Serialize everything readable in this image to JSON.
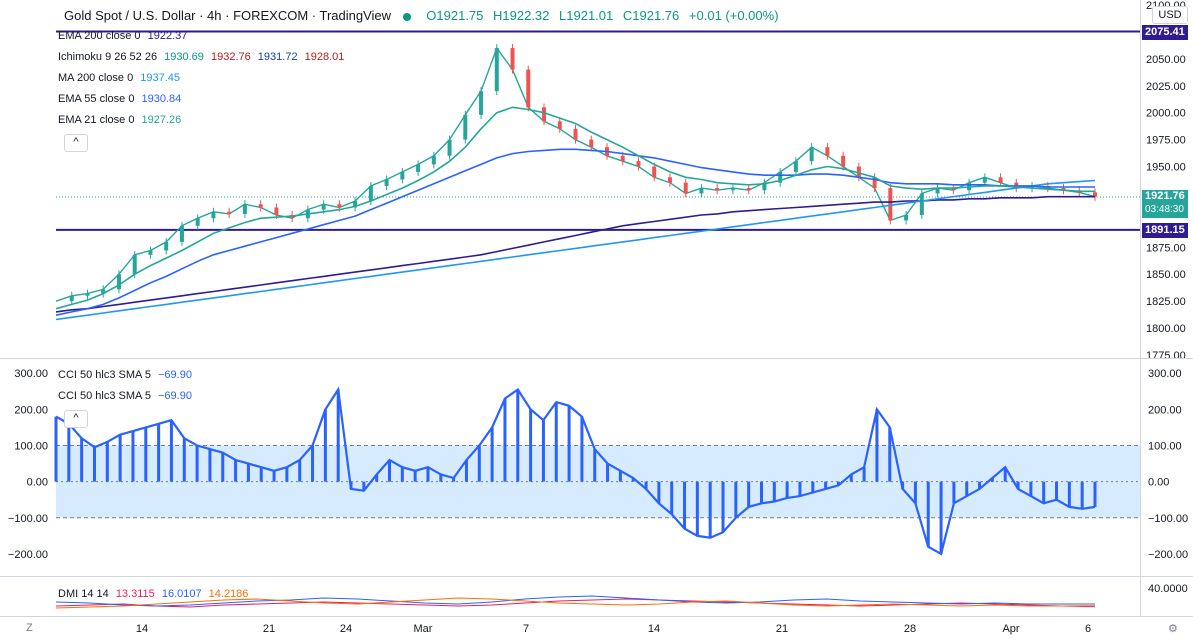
{
  "header": {
    "symbol": "Gold Spot / U.S. Dollar · 4h · FOREXCOM · TradingView",
    "open": "O1921.75",
    "high": "H1922.32",
    "low": "L1921.01",
    "close": "C1921.76",
    "change": "+0.01 (+0.00%)"
  },
  "legend": {
    "ema200": {
      "label": "EMA 200 close 0",
      "value": "1922.37",
      "color": "#311b92"
    },
    "ichimoku": {
      "label": "Ichimoku 9 26 52 26",
      "v1": "1930.69",
      "v2": "1932.76",
      "v3": "1931.72",
      "v4": "1928.01",
      "c1": "#089981",
      "c2": "#b71c1c",
      "c3": "#0d47a1",
      "c4": "#b71c1c"
    },
    "ma200": {
      "label": "MA 200 close 0",
      "value": "1937.45",
      "color": "#2196f3"
    },
    "ema55": {
      "label": "EMA 55 close 0",
      "value": "1930.84",
      "color": "#2962ff"
    },
    "ema21": {
      "label": "EMA 21 close 0",
      "value": "1927.26",
      "color": "#26a69a"
    },
    "collapse_icon": "chevron-up-icon",
    "collapse_glyph": "^"
  },
  "cci_legend": {
    "line1": {
      "label": "CCI 50 hlc3 SMA 5",
      "value": "−69.90"
    },
    "line2": {
      "label": "CCI 50 hlc3 SMA 5",
      "value": "−69.90"
    }
  },
  "dmi_legend": {
    "label": "DMI 14 14",
    "v1": "13.3115",
    "c1": "#e91e63",
    "v2": "16.0107",
    "c2": "#2962ff",
    "v3": "14.2186",
    "c3": "#ff6d00"
  },
  "price_axis": {
    "currency": "USD",
    "currency_glyph": "⌄",
    "ticks": [
      "2100.00",
      "2050.00",
      "2025.00",
      "2000.00",
      "1975.00",
      "1950.00",
      "1875.00",
      "1850.00",
      "1825.00",
      "1800.00",
      "1775.00"
    ],
    "tags": [
      {
        "text": "2075.41",
        "color": "#311b92"
      },
      {
        "text": "1921.76",
        "sub": "03:48:30",
        "color": "#26a69a"
      },
      {
        "text": "1891.15",
        "color": "#311b92"
      }
    ]
  },
  "cci_axis": {
    "ticks": [
      "300.00",
      "200.00",
      "100.00",
      "0.00",
      "−100.00",
      "−200.00"
    ]
  },
  "dmi_axis": {
    "ticks": [
      "40.0000"
    ]
  },
  "time_axis": {
    "ticks": [
      "14",
      "21",
      "24",
      "Mar",
      "7",
      "14",
      "21",
      "28",
      "Apr",
      "6"
    ]
  },
  "bottom": {
    "left_icon": "timezone-icon",
    "left_glyph": "Z",
    "right_icon": "settings-icon",
    "right_glyph": "⚙"
  },
  "chart_data": [
    {
      "type": "line",
      "title": "Gold Spot / U.S. Dollar · 4h · FOREXCOM",
      "y_axis": "price (USD)",
      "ylim": [
        1775,
        2100
      ],
      "horizontal_lines": [
        2075.41,
        1891.15
      ],
      "last_price": 1921.76,
      "series": [
        {
          "name": "price",
          "color": "#26a69a",
          "values": [
            1825,
            1830,
            1832,
            1836,
            1850,
            1868,
            1872,
            1880,
            1895,
            1902,
            1908,
            1906,
            1915,
            1912,
            1905,
            1902,
            1910,
            1915,
            1912,
            1918,
            1932,
            1938,
            1945,
            1952,
            1960,
            1975,
            1998,
            2020,
            2060,
            2040,
            2005,
            1992,
            1985,
            1975,
            1968,
            1960,
            1955,
            1950,
            1940,
            1935,
            1925,
            1930,
            1928,
            1930,
            1928,
            1935,
            1945,
            1955,
            1968,
            1960,
            1950,
            1940,
            1930,
            1900,
            1905,
            1925,
            1930,
            1928,
            1935,
            1940,
            1935,
            1930,
            1932,
            1930,
            1928,
            1926,
            1922
          ]
        },
        {
          "name": "EMA 200",
          "color": "#311b92",
          "values": [
            1815,
            1817,
            1818,
            1820,
            1822,
            1824,
            1826,
            1828,
            1830,
            1832,
            1834,
            1836,
            1838,
            1840,
            1842,
            1844,
            1846,
            1848,
            1850,
            1852,
            1854,
            1856,
            1858,
            1860,
            1862,
            1864,
            1866,
            1868,
            1871,
            1874,
            1877,
            1880,
            1883,
            1886,
            1889,
            1892,
            1895,
            1897,
            1899,
            1901,
            1903,
            1905,
            1906,
            1908,
            1909,
            1910,
            1911,
            1912,
            1913,
            1914,
            1915,
            1916,
            1917,
            1917,
            1918,
            1918,
            1919,
            1919,
            1920,
            1920,
            1921,
            1921,
            1921,
            1922,
            1922,
            1922,
            1922
          ]
        },
        {
          "name": "MA 200",
          "color": "#2196f3",
          "values": [
            1808,
            1810,
            1812,
            1814,
            1816,
            1818,
            1820,
            1822,
            1824,
            1826,
            1828,
            1830,
            1832,
            1834,
            1836,
            1838,
            1840,
            1842,
            1844,
            1846,
            1848,
            1850,
            1852,
            1854,
            1856,
            1858,
            1860,
            1862,
            1864,
            1866,
            1868,
            1870,
            1872,
            1874,
            1876,
            1878,
            1880,
            1882,
            1884,
            1886,
            1888,
            1890,
            1892,
            1894,
            1896,
            1898,
            1900,
            1902,
            1904,
            1906,
            1908,
            1910,
            1912,
            1914,
            1916,
            1918,
            1920,
            1922,
            1924,
            1926,
            1928,
            1930,
            1932,
            1934,
            1935,
            1936,
            1937
          ]
        },
        {
          "name": "EMA 55",
          "color": "#2962ff",
          "values": [
            1812,
            1815,
            1818,
            1822,
            1828,
            1835,
            1842,
            1848,
            1855,
            1862,
            1868,
            1872,
            1876,
            1880,
            1884,
            1888,
            1892,
            1896,
            1900,
            1904,
            1910,
            1916,
            1922,
            1928,
            1934,
            1940,
            1946,
            1952,
            1958,
            1962,
            1964,
            1965,
            1966,
            1966,
            1965,
            1964,
            1962,
            1960,
            1958,
            1955,
            1952,
            1949,
            1947,
            1945,
            1943,
            1942,
            1942,
            1942,
            1943,
            1943,
            1942,
            1940,
            1938,
            1935,
            1934,
            1934,
            1934,
            1933,
            1933,
            1933,
            1932,
            1932,
            1932,
            1931,
            1931,
            1931,
            1931
          ]
        },
        {
          "name": "EMA 21",
          "color": "#26a69a",
          "values": [
            1818,
            1822,
            1826,
            1832,
            1840,
            1850,
            1858,
            1865,
            1872,
            1880,
            1888,
            1893,
            1898,
            1902,
            1903,
            1904,
            1906,
            1908,
            1910,
            1913,
            1918,
            1924,
            1930,
            1937,
            1945,
            1955,
            1968,
            1985,
            2000,
            2005,
            2003,
            2000,
            1995,
            1990,
            1982,
            1975,
            1968,
            1960,
            1952,
            1945,
            1940,
            1938,
            1935,
            1934,
            1933,
            1934,
            1937,
            1942,
            1947,
            1950,
            1948,
            1944,
            1940,
            1932,
            1930,
            1929,
            1930,
            1930,
            1931,
            1932,
            1932,
            1931,
            1930,
            1929,
            1928,
            1927,
            1927
          ]
        }
      ]
    },
    {
      "type": "bar",
      "title": "CCI 50 hlc3 SMA 5",
      "ylim": [
        -250,
        320
      ],
      "bands": [
        100,
        -100
      ],
      "values": [
        180,
        160,
        120,
        95,
        110,
        130,
        140,
        150,
        160,
        170,
        120,
        100,
        90,
        80,
        60,
        50,
        40,
        30,
        40,
        60,
        100,
        200,
        255,
        -20,
        -25,
        20,
        60,
        40,
        30,
        40,
        20,
        10,
        60,
        100,
        150,
        230,
        255,
        200,
        170,
        220,
        210,
        180,
        90,
        50,
        30,
        10,
        -20,
        -60,
        -90,
        -130,
        -150,
        -155,
        -140,
        -100,
        -70,
        -60,
        -55,
        -45,
        -40,
        -30,
        -20,
        -10,
        20,
        40,
        200,
        150,
        -20,
        -60,
        -180,
        -200,
        -60,
        -40,
        -20,
        10,
        40,
        -20,
        -40,
        -60,
        -50,
        -70,
        -75,
        -69.9
      ]
    },
    {
      "type": "line",
      "title": "DMI 14 14",
      "series": [
        {
          "name": "13.3115",
          "color": "#e91e63",
          "values": [
            14,
            15,
            16,
            14,
            13,
            15,
            16,
            17,
            18,
            17,
            16,
            15,
            14,
            15,
            17,
            19,
            20,
            21,
            20,
            19,
            18,
            17,
            16,
            15,
            14,
            15,
            16,
            17,
            16,
            15,
            14,
            13.3
          ]
        },
        {
          "name": "16.0107",
          "color": "#2962ff",
          "values": [
            18,
            17,
            15,
            14,
            15,
            17,
            19,
            20,
            22,
            21,
            19,
            17,
            16,
            18,
            21,
            23,
            24,
            22,
            20,
            18,
            17,
            18,
            20,
            21,
            19,
            18,
            17,
            16,
            17,
            16,
            16,
            16.0
          ]
        },
        {
          "name": "14.2186",
          "color": "#ff6d00",
          "values": [
            12,
            13,
            14,
            16,
            18,
            20,
            21,
            19,
            17,
            16,
            18,
            20,
            22,
            21,
            19,
            17,
            16,
            15,
            16,
            18,
            19,
            17,
            15,
            14,
            15,
            16,
            15,
            14,
            15,
            14,
            14,
            14.2
          ]
        }
      ]
    }
  ]
}
